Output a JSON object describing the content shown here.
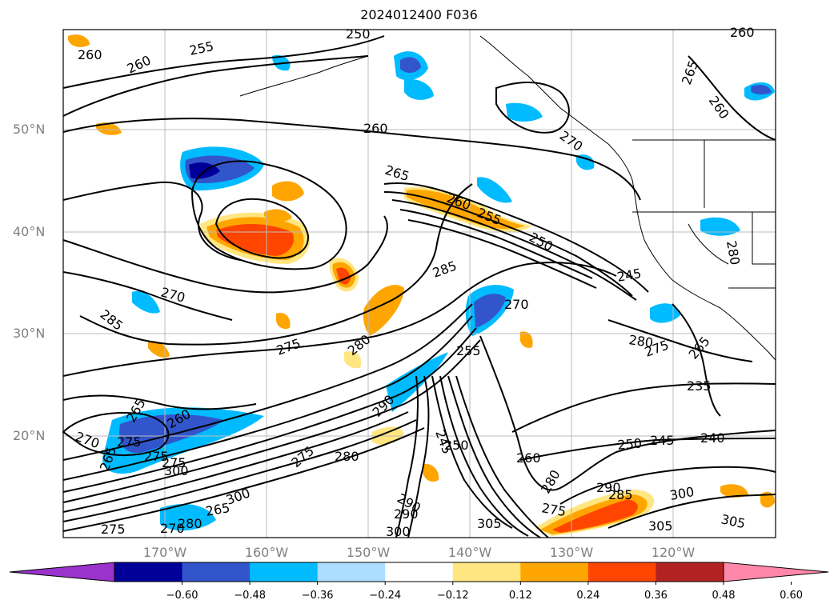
{
  "title": "2024012400 F036",
  "lat_labels": [
    "50°N",
    "40°N",
    "30°N",
    "20°N"
  ],
  "lon_labels": [
    "170°W",
    "160°W",
    "150°W",
    "140°W",
    "130°W",
    "120°W"
  ],
  "colorbar": {
    "ticks": [
      "−0.60",
      "−0.48",
      "−0.36",
      "−0.24",
      "−0.12",
      "0.12",
      "0.24",
      "0.36",
      "0.48",
      "0.60"
    ],
    "colors": [
      "#9933cc",
      "#000099",
      "#3355cc",
      "#00bbff",
      "#aaddff",
      "#ffffff",
      "#ffe680",
      "#ffa500",
      "#ff4500",
      "#b22222",
      "#ff88aa"
    ]
  },
  "contour_labels": [
    "260",
    "255",
    "250",
    "260",
    "260",
    "265",
    "260",
    "260",
    "270",
    "265",
    "260",
    "255",
    "250",
    "245",
    "285",
    "270",
    "280",
    "275",
    "270",
    "275",
    "280",
    "285",
    "280",
    "275",
    "265",
    "235",
    "290",
    "245",
    "250",
    "255",
    "260",
    "275",
    "265",
    "260",
    "275",
    "270",
    "265",
    "250",
    "245",
    "240",
    "300",
    "290",
    "300",
    "305",
    "280",
    "275",
    "290",
    "285",
    "290",
    "300",
    "305",
    "305",
    "275",
    "270",
    "300",
    "265",
    "280",
    "280",
    "275"
  ]
}
